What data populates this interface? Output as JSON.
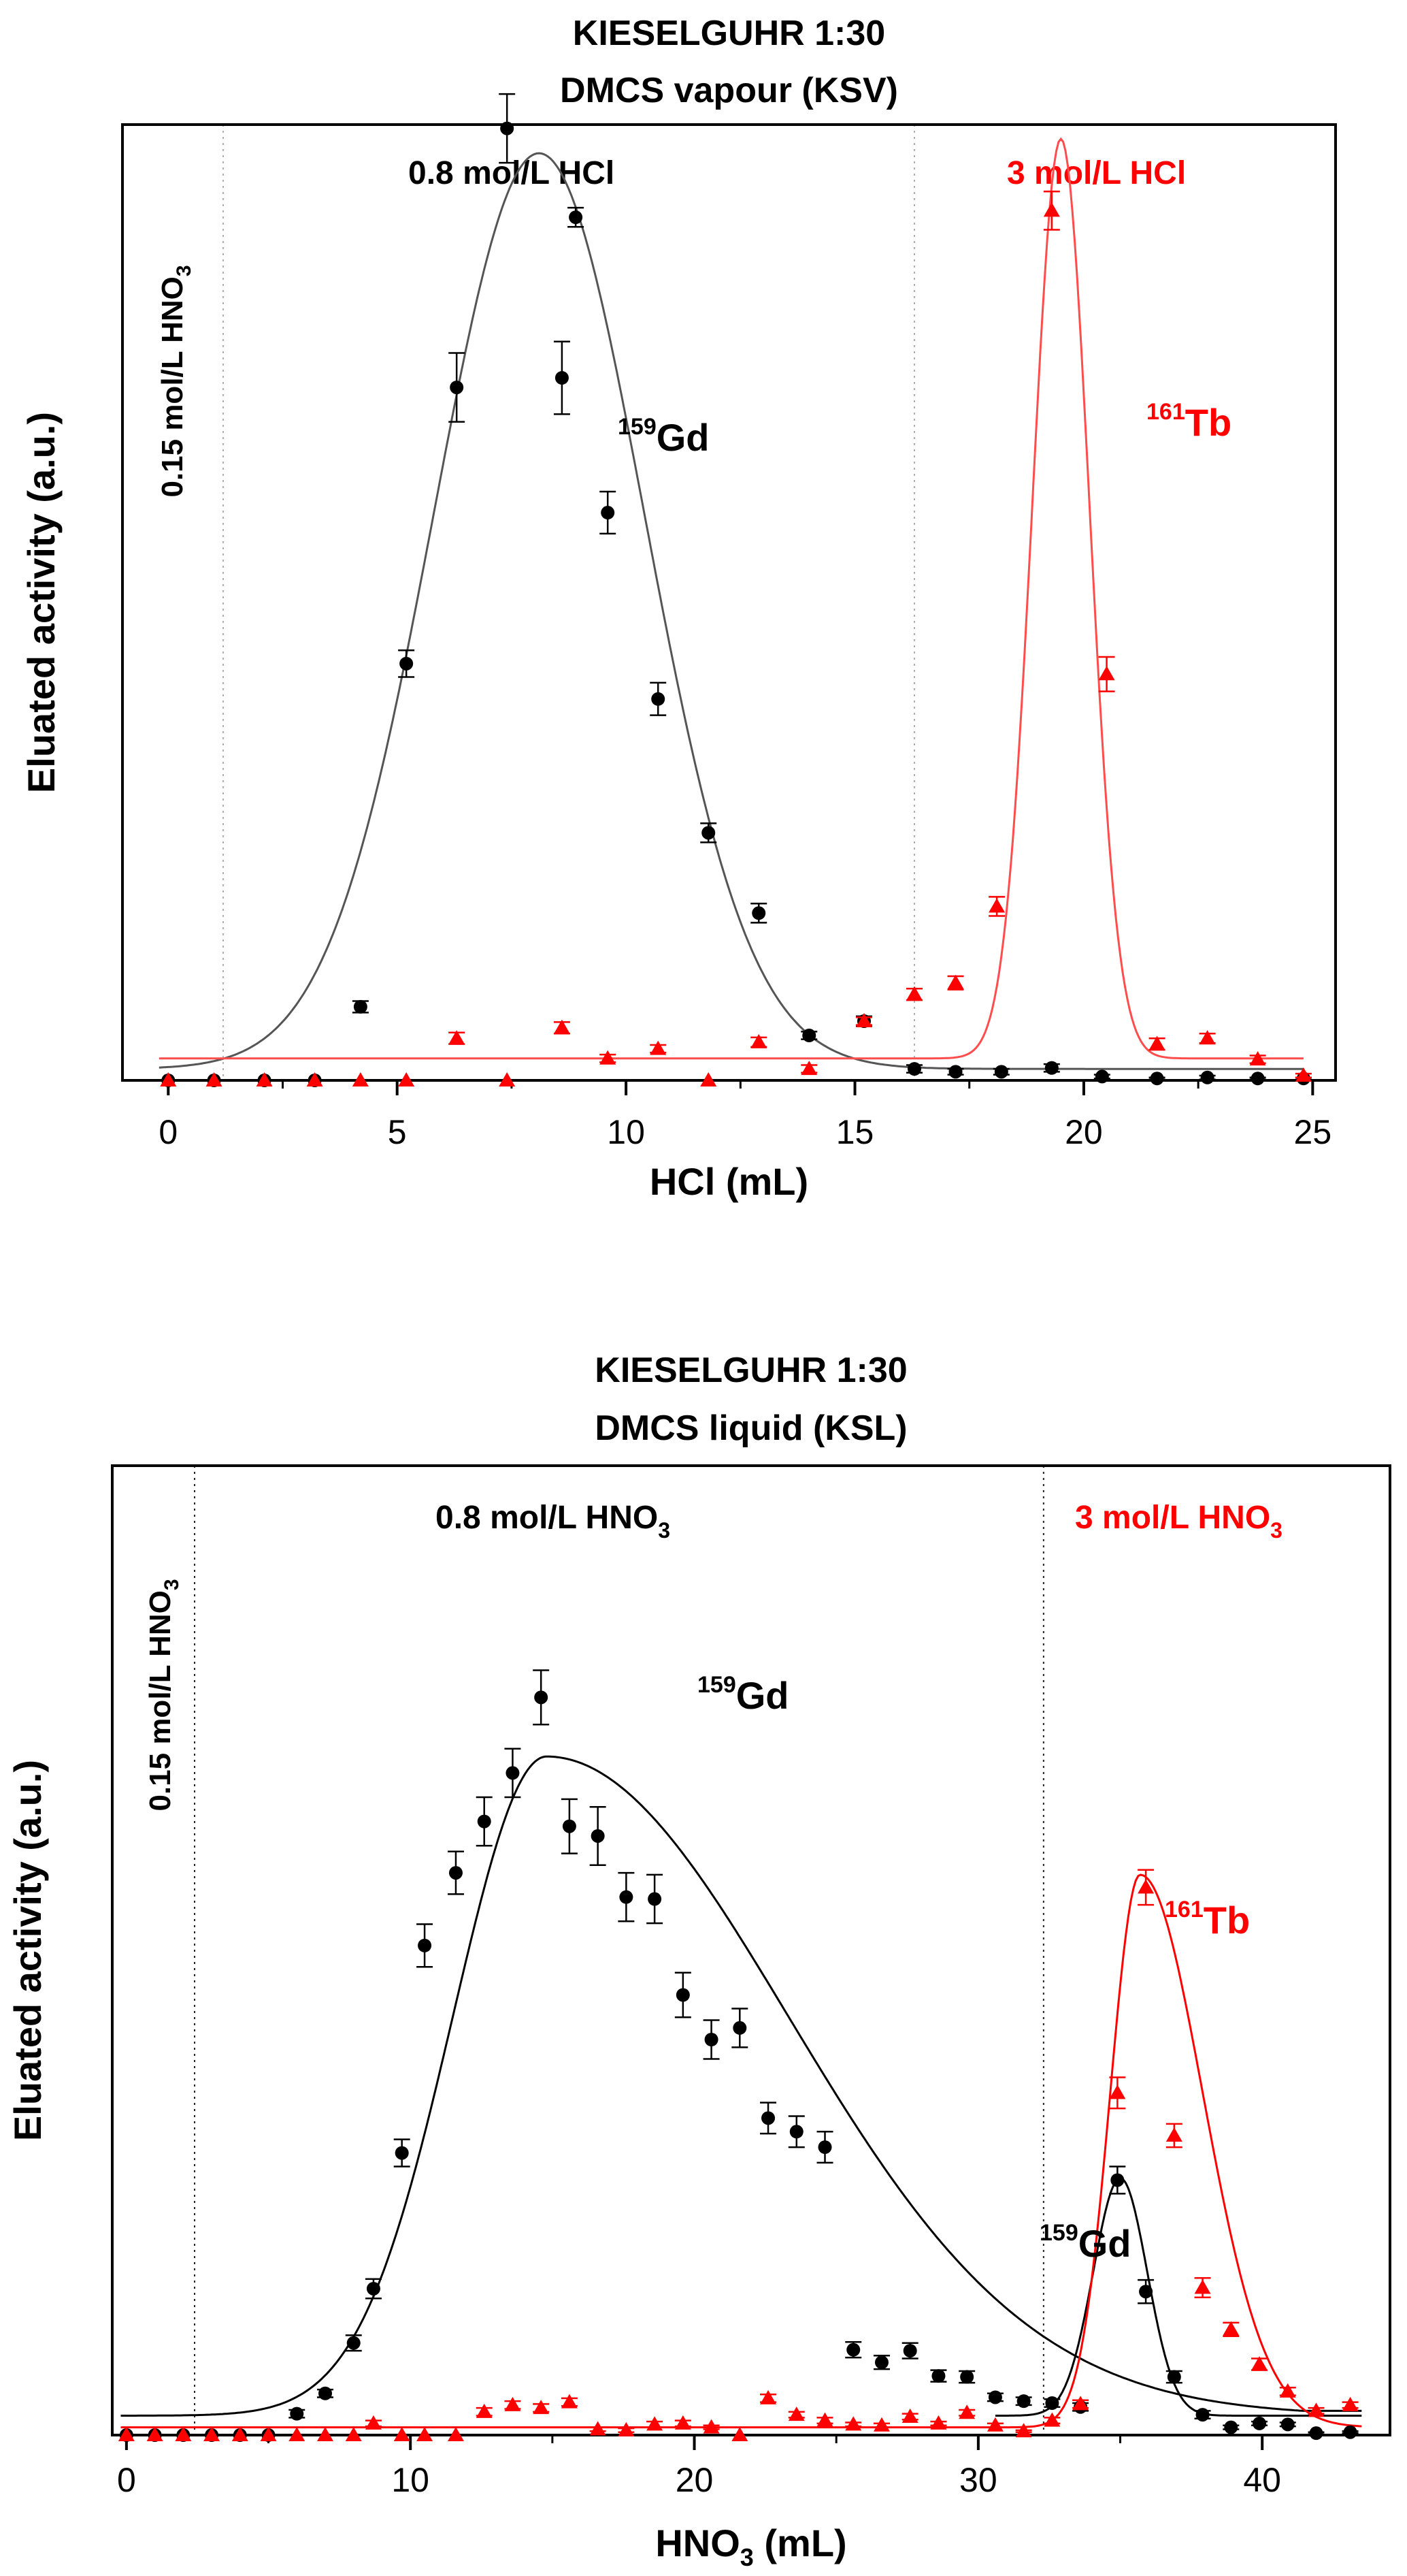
{
  "chart_data": [
    {
      "type": "scatter",
      "title_line1": "KIESELGUHR 1:30",
      "title_line2": "DMCS vapour (KSV)",
      "xlabel": "HCl (mL)",
      "ylabel": "Eluated activity (a.u.)",
      "xlim": [
        -1,
        25.5
      ],
      "ylim": [
        0,
        1.0
      ],
      "xticks": [
        0,
        5,
        10,
        15,
        20,
        25
      ],
      "divider_x": [
        1.2,
        16.3
      ],
      "region_label_left": "0.15 mol/L HNO",
      "region_label_left_sub": "3",
      "region_label_mid": "0.8 mol/L HCl",
      "region_label_right": "3 mol/L HCl",
      "colors": {
        "gd": "#000000",
        "tb": "#ff0000",
        "gd_fit": "#555555",
        "tb_fit": "#ff4d4d"
      },
      "series": [
        {
          "name": "Gd",
          "label_sup": "159",
          "label": "Gd",
          "marker": "circle",
          "x": [
            0,
            1,
            2.1,
            3.2,
            4.2,
            5.2,
            6.3,
            7.4,
            8.6,
            8.9,
            9.6,
            10.7,
            11.8,
            12.9,
            14.0,
            15.2,
            16.3,
            17.2,
            18.2,
            19.3,
            20.4,
            21.6,
            22.7,
            23.8,
            24.8
          ],
          "y": [
            0.0,
            0.0,
            0.0,
            0.0,
            0.077,
            0.436,
            0.725,
            0.996,
            0.735,
            0.903,
            0.594,
            0.399,
            0.259,
            0.175,
            0.047,
            0.062,
            0.012,
            0.009,
            0.009,
            0.013,
            0.004,
            0.002,
            0.003,
            0.002,
            0.002
          ],
          "err": [
            0,
            0,
            0,
            0,
            0.006,
            0.014,
            0.036,
            0.036,
            0.038,
            0.01,
            0.022,
            0.017,
            0.01,
            0.01,
            0.004,
            0.005,
            0.004,
            0.003,
            0.003,
            0.004,
            0.002,
            0.001,
            0.002,
            0.001,
            0.001
          ]
        },
        {
          "name": "Tb",
          "label_sup": "161",
          "label": "Tb",
          "marker": "triangle",
          "x": [
            0,
            1,
            2.1,
            3.2,
            4.2,
            5.2,
            6.3,
            7.4,
            8.6,
            9.6,
            10.7,
            11.8,
            12.9,
            14.0,
            15.2,
            16.3,
            17.2,
            18.1,
            19.3,
            20.5,
            21.6,
            22.7,
            23.8,
            24.8
          ],
          "y": [
            0.0,
            0.0,
            0.0,
            0.0,
            0.0,
            0.0,
            0.044,
            0.0,
            0.055,
            0.023,
            0.033,
            0.0,
            0.04,
            0.012,
            0.062,
            0.09,
            0.102,
            0.182,
            0.91,
            0.425,
            0.038,
            0.044,
            0.022,
            0.005
          ],
          "err": [
            0,
            0,
            0,
            0,
            0,
            0,
            0.006,
            0,
            0.006,
            0.004,
            0.004,
            0,
            0.005,
            0.004,
            0.004,
            0.006,
            0.007,
            0.01,
            0.02,
            0.018,
            0.006,
            0.005,
            0.004,
            0.002
          ]
        }
      ],
      "fits": [
        {
          "name": "Gd fit",
          "kind": "gaussian",
          "baseline": 0.012,
          "amp": 0.958,
          "center": 8.1,
          "sigma": 2.3,
          "x_start": -0.2,
          "x_end": 24.8
        },
        {
          "name": "Tb fit",
          "kind": "gaussian",
          "baseline": 0.023,
          "amp": 0.962,
          "center": 19.5,
          "sigma": 0.62,
          "x_start": -0.2,
          "x_end": 24.8
        }
      ]
    },
    {
      "type": "scatter",
      "title_line1": "KIESELGUHR 1:30",
      "title_line2": "DMCS liquid (KSL)",
      "xlabel": "HNO",
      "xlabel_sub": "3",
      "xlabel_tail": " (mL)",
      "ylabel": "Eluated activity (a.u.)",
      "xlim": [
        -0.5,
        44.5
      ],
      "ylim": [
        0,
        1.0
      ],
      "xticks": [
        0,
        10,
        20,
        30,
        40
      ],
      "divider_x": [
        2.4,
        32.3
      ],
      "region_label_left": "0.15 mol/L HNO",
      "region_label_left_sub": "3",
      "region_label_mid": "0.8 mol/L HNO",
      "region_label_mid_sub": "3",
      "region_label_right": "3 mol/L HNO",
      "region_label_right_sub": "3",
      "colors": {
        "gd": "#000000",
        "tb": "#ff0000",
        "gd_fit": "#000000",
        "tb_fit": "#ff0000"
      },
      "series": [
        {
          "name": "Gd",
          "label_sup": "159",
          "label": "Gd",
          "second_label_sup": "159",
          "second_label": "Gd",
          "marker": "circle",
          "x": [
            0,
            1,
            2,
            3,
            4,
            5,
            6,
            7,
            8,
            8.7,
            9.7,
            10.5,
            11.6,
            12.6,
            13.6,
            14.6,
            15.6,
            16.6,
            17.6,
            18.6,
            19.6,
            20.6,
            21.6,
            22.6,
            23.6,
            24.6,
            25.6,
            26.6,
            27.6,
            28.6,
            29.6,
            30.6,
            31.6,
            32.6,
            33.6,
            34.9,
            35.9,
            36.9,
            37.9,
            38.9,
            39.9,
            40.9,
            41.9,
            43.1
          ],
          "y": [
            0.0,
            0.0,
            0.0,
            0.0,
            0.0,
            0.0,
            0.022,
            0.043,
            0.095,
            0.151,
            0.291,
            0.505,
            0.58,
            0.633,
            0.683,
            0.761,
            0.628,
            0.618,
            0.555,
            0.553,
            0.454,
            0.408,
            0.42,
            0.327,
            0.313,
            0.297,
            0.088,
            0.075,
            0.087,
            0.061,
            0.06,
            0.039,
            0.035,
            0.033,
            0.029,
            0.263,
            0.148,
            0.06,
            0.021,
            0.008,
            0.012,
            0.011,
            0.002,
            0.003
          ],
          "err": [
            0,
            0,
            0,
            0,
            0,
            0,
            0.004,
            0.004,
            0.008,
            0.01,
            0.014,
            0.022,
            0.022,
            0.025,
            0.025,
            0.028,
            0.028,
            0.03,
            0.025,
            0.025,
            0.023,
            0.02,
            0.02,
            0.016,
            0.016,
            0.016,
            0.008,
            0.007,
            0.008,
            0.006,
            0.006,
            0.004,
            0.004,
            0.004,
            0.004,
            0.014,
            0.012,
            0.006,
            0.004,
            0.002,
            0.002,
            0.002,
            0.001,
            0.001
          ]
        },
        {
          "name": "Tb",
          "label_sup": "161",
          "label": "Tb",
          "marker": "triangle",
          "x": [
            0,
            1,
            2,
            3,
            4,
            5,
            6,
            7,
            8,
            8.7,
            9.7,
            10.5,
            11.6,
            12.6,
            13.6,
            14.6,
            15.6,
            16.6,
            17.6,
            18.6,
            19.6,
            20.6,
            21.6,
            22.6,
            23.6,
            24.6,
            25.6,
            26.6,
            27.6,
            28.6,
            29.6,
            30.6,
            31.6,
            32.6,
            33.6,
            34.9,
            35.9,
            36.9,
            37.9,
            38.9,
            39.9,
            40.9,
            41.9,
            43.1
          ],
          "y": [
            0.0,
            0.0,
            0.0,
            0.0,
            0.0,
            0.0,
            0.0,
            0.0,
            0.0,
            0.012,
            0.0,
            0.0,
            0.0,
            0.024,
            0.031,
            0.028,
            0.034,
            0.006,
            0.005,
            0.011,
            0.012,
            0.008,
            0.0,
            0.038,
            0.021,
            0.015,
            0.011,
            0.01,
            0.019,
            0.012,
            0.023,
            0.01,
            0.004,
            0.015,
            0.032,
            0.353,
            0.565,
            0.309,
            0.152,
            0.109,
            0.073,
            0.045,
            0.025,
            0.031
          ],
          "err": [
            0,
            0,
            0,
            0,
            0,
            0,
            0,
            0,
            0,
            0.003,
            0,
            0,
            0,
            0.004,
            0.004,
            0.004,
            0.004,
            0.002,
            0.002,
            0.003,
            0.003,
            0.002,
            0,
            0.004,
            0.003,
            0.003,
            0.002,
            0.002,
            0.003,
            0.002,
            0.003,
            0.002,
            0.001,
            0.003,
            0.004,
            0.016,
            0.018,
            0.012,
            0.01,
            0.007,
            0.006,
            0.004,
            0.003,
            0.003
          ]
        }
      ],
      "fits": [
        {
          "name": "Gd fit main",
          "kind": "skew",
          "baseline": 0.02,
          "amp": 0.68,
          "center": 14.8,
          "sigma_left": 3.3,
          "sigma_right": 8.5,
          "tail_floor": 0.025,
          "x_start": -0.2,
          "x_end": 43.5
        },
        {
          "name": "Gd fit second",
          "kind": "gaussian",
          "baseline": 0.02,
          "amp": 0.245,
          "center": 35.0,
          "sigma": 0.95,
          "x_start": 30.6,
          "x_end": 43.5
        },
        {
          "name": "Tb fit",
          "kind": "asym",
          "baseline": 0.008,
          "amp": 0.57,
          "center": 35.7,
          "sigma_left": 1.05,
          "sigma_right": 2.2,
          "x_start": -0.2,
          "x_end": 43.5
        }
      ]
    }
  ]
}
